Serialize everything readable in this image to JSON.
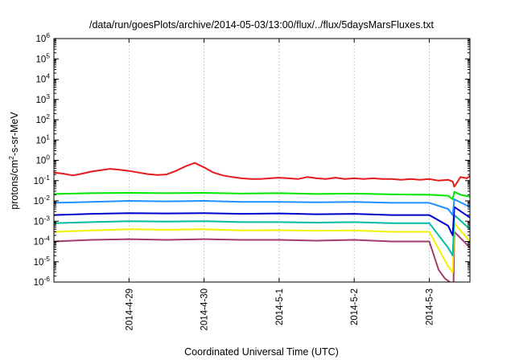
{
  "chart_data": {
    "type": "line",
    "title": "/data/run/goesPlots/archive/2014-05-03/13:00/flux/../flux/5daysMarsFluxes.txt",
    "xlabel": "Coordinated Universal Time (UTC)",
    "ylabel_parts": [
      "protons/cm",
      "2",
      "-s-sr-MeV"
    ],
    "y_scale": "log",
    "ylim": [
      1e-06,
      1000000.0
    ],
    "y_ticks": [
      {
        "exp": -6,
        "base": "10",
        "sup": "-6"
      },
      {
        "exp": -5,
        "base": "10",
        "sup": "-5"
      },
      {
        "exp": -4,
        "base": "10",
        "sup": "-4"
      },
      {
        "exp": -3,
        "base": "10",
        "sup": "-3"
      },
      {
        "exp": -2,
        "base": "10",
        "sup": "-2"
      },
      {
        "exp": -1,
        "base": "10",
        "sup": "-1"
      },
      {
        "exp": 0,
        "base": "10",
        "sup": "0"
      },
      {
        "exp": 1,
        "base": "10",
        "sup": "1"
      },
      {
        "exp": 2,
        "base": "10",
        "sup": "2"
      },
      {
        "exp": 3,
        "base": "10",
        "sup": "3"
      },
      {
        "exp": 4,
        "base": "10",
        "sup": "4"
      },
      {
        "exp": 5,
        "base": "10",
        "sup": "5"
      },
      {
        "exp": 6,
        "base": "10",
        "sup": "6"
      }
    ],
    "xlim": [
      "2014-04-28T00:00",
      "2014-05-03T13:00"
    ],
    "x_ticks": [
      {
        "t": "2014-04-29T00:00",
        "label": "2014-4-29"
      },
      {
        "t": "2014-04-30T00:00",
        "label": "2014-4-30"
      },
      {
        "t": "2014-05-01T00:00",
        "label": "2014-5-1"
      },
      {
        "t": "2014-05-02T00:00",
        "label": "2014-5-2"
      },
      {
        "t": "2014-05-03T00:00",
        "label": "2014-5-3"
      }
    ],
    "grid": true,
    "series": [
      {
        "color": "#e41a1c",
        "x": [
          "2014-04-28T00:00",
          "2014-04-28T03:00",
          "2014-04-28T06:00",
          "2014-04-28T09:00",
          "2014-04-28T12:00",
          "2014-04-28T15:00",
          "2014-04-28T18:00",
          "2014-04-28T21:00",
          "2014-04-29T00:00",
          "2014-04-29T03:00",
          "2014-04-29T06:00",
          "2014-04-29T09:00",
          "2014-04-29T12:00",
          "2014-04-29T15:00",
          "2014-04-29T18:00",
          "2014-04-29T21:00",
          "2014-04-30T00:00",
          "2014-04-30T03:00",
          "2014-04-30T06:00",
          "2014-04-30T09:00",
          "2014-04-30T12:00",
          "2014-04-30T15:00",
          "2014-04-30T18:00",
          "2014-04-30T21:00",
          "2014-05-01T00:00",
          "2014-05-01T03:00",
          "2014-05-01T06:00",
          "2014-05-01T09:00",
          "2014-05-01T12:00",
          "2014-05-01T15:00",
          "2014-05-01T18:00",
          "2014-05-01T21:00",
          "2014-05-02T00:00",
          "2014-05-02T03:00",
          "2014-05-02T06:00",
          "2014-05-02T09:00",
          "2014-05-02T12:00",
          "2014-05-02T15:00",
          "2014-05-02T18:00",
          "2014-05-02T21:00",
          "2014-05-03T00:00",
          "2014-05-03T03:00",
          "2014-05-03T06:00",
          "2014-05-03T07:30",
          "2014-05-03T08:00",
          "2014-05-03T10:00",
          "2014-05-03T12:00",
          "2014-05-03T13:00"
        ],
        "y": [
          0.25,
          0.22,
          0.18,
          0.22,
          0.28,
          0.33,
          0.38,
          0.34,
          0.3,
          0.25,
          0.21,
          0.19,
          0.2,
          0.3,
          0.5,
          0.75,
          0.45,
          0.25,
          0.18,
          0.15,
          0.13,
          0.12,
          0.12,
          0.13,
          0.14,
          0.13,
          0.12,
          0.15,
          0.13,
          0.12,
          0.14,
          0.12,
          0.13,
          0.12,
          0.13,
          0.12,
          0.12,
          0.11,
          0.12,
          0.11,
          0.12,
          0.1,
          0.11,
          0.09,
          0.05,
          0.15,
          0.13,
          0.17
        ]
      },
      {
        "color": "#00e600",
        "x": [
          "2014-04-28T00:00",
          "2014-04-28T12:00",
          "2014-04-29T00:00",
          "2014-04-29T12:00",
          "2014-04-30T00:00",
          "2014-04-30T12:00",
          "2014-05-01T00:00",
          "2014-05-01T12:00",
          "2014-05-02T00:00",
          "2014-05-02T12:00",
          "2014-05-03T00:00",
          "2014-05-03T06:00",
          "2014-05-03T07:30",
          "2014-05-03T08:00",
          "2014-05-03T10:00",
          "2014-05-03T13:00"
        ],
        "y": [
          0.022,
          0.024,
          0.025,
          0.024,
          0.025,
          0.023,
          0.024,
          0.022,
          0.023,
          0.021,
          0.02,
          0.018,
          0.012,
          0.028,
          0.02,
          0.016
        ]
      },
      {
        "color": "#1e90ff",
        "x": [
          "2014-04-28T00:00",
          "2014-04-28T12:00",
          "2014-04-29T00:00",
          "2014-04-29T12:00",
          "2014-04-30T00:00",
          "2014-04-30T12:00",
          "2014-05-01T00:00",
          "2014-05-01T12:00",
          "2014-05-02T00:00",
          "2014-05-02T12:00",
          "2014-05-03T00:00",
          "2014-05-03T06:00",
          "2014-05-03T07:30",
          "2014-05-03T08:00",
          "2014-05-03T13:00"
        ],
        "y": [
          0.008,
          0.009,
          0.01,
          0.0095,
          0.01,
          0.009,
          0.009,
          0.0085,
          0.009,
          0.008,
          0.008,
          0.004,
          0.002,
          0.012,
          0.005
        ]
      },
      {
        "color": "#0000cd",
        "x": [
          "2014-04-28T00:00",
          "2014-04-28T12:00",
          "2014-04-29T00:00",
          "2014-04-29T12:00",
          "2014-04-30T00:00",
          "2014-04-30T12:00",
          "2014-05-01T00:00",
          "2014-05-01T12:00",
          "2014-05-02T00:00",
          "2014-05-02T12:00",
          "2014-05-03T00:00",
          "2014-05-03T06:00",
          "2014-05-03T07:30",
          "2014-05-03T08:00",
          "2014-05-03T13:00"
        ],
        "y": [
          0.002,
          0.0023,
          0.0025,
          0.0024,
          0.0025,
          0.0023,
          0.0024,
          0.0022,
          0.0023,
          0.002,
          0.002,
          0.0006,
          0.0002,
          0.005,
          0.0015
        ]
      },
      {
        "color": "#00bfa0",
        "x": [
          "2014-04-28T00:00",
          "2014-04-28T12:00",
          "2014-04-29T00:00",
          "2014-04-29T12:00",
          "2014-04-30T00:00",
          "2014-04-30T12:00",
          "2014-05-01T00:00",
          "2014-05-01T12:00",
          "2014-05-02T00:00",
          "2014-05-02T12:00",
          "2014-05-03T00:00",
          "2014-05-03T06:00",
          "2014-05-03T07:30",
          "2014-05-03T08:00",
          "2014-05-03T13:00"
        ],
        "y": [
          0.0008,
          0.0009,
          0.001,
          0.00095,
          0.001,
          0.0009,
          0.0009,
          0.00085,
          0.0009,
          0.0008,
          0.0008,
          5e-05,
          2e-05,
          0.002,
          0.0004
        ]
      },
      {
        "color": "#f2f200",
        "x": [
          "2014-04-28T00:00",
          "2014-04-28T12:00",
          "2014-04-29T00:00",
          "2014-04-29T12:00",
          "2014-04-30T00:00",
          "2014-04-30T12:00",
          "2014-05-01T00:00",
          "2014-05-01T12:00",
          "2014-05-02T00:00",
          "2014-05-02T12:00",
          "2014-05-03T00:00",
          "2014-05-03T06:00",
          "2014-05-03T07:30",
          "2014-05-03T08:00",
          "2014-05-03T13:00"
        ],
        "y": [
          0.0003,
          0.00035,
          0.0004,
          0.00038,
          0.0004,
          0.00035,
          0.00036,
          0.00034,
          0.00035,
          0.0003,
          0.0003,
          6e-06,
          3e-06,
          0.0008,
          0.0001
        ]
      },
      {
        "color": "#a03c6e",
        "x": [
          "2014-04-28T00:00",
          "2014-04-28T12:00",
          "2014-04-29T00:00",
          "2014-04-29T12:00",
          "2014-04-30T00:00",
          "2014-04-30T12:00",
          "2014-05-01T00:00",
          "2014-05-01T12:00",
          "2014-05-02T00:00",
          "2014-05-02T12:00",
          "2014-05-03T00:00",
          "2014-05-03T03:00",
          "2014-05-03T05:00",
          "2014-05-03T07:00",
          "2014-05-03T07:45",
          "2014-05-03T08:00",
          "2014-05-03T13:00"
        ],
        "y": [
          0.0001,
          0.00012,
          0.00013,
          0.00012,
          0.00013,
          0.00012,
          0.00012,
          0.00011,
          0.00012,
          0.0001,
          0.0001,
          4e-06,
          1.5e-06,
          9e-07,
          9e-07,
          0.0003,
          5e-05
        ]
      }
    ]
  }
}
